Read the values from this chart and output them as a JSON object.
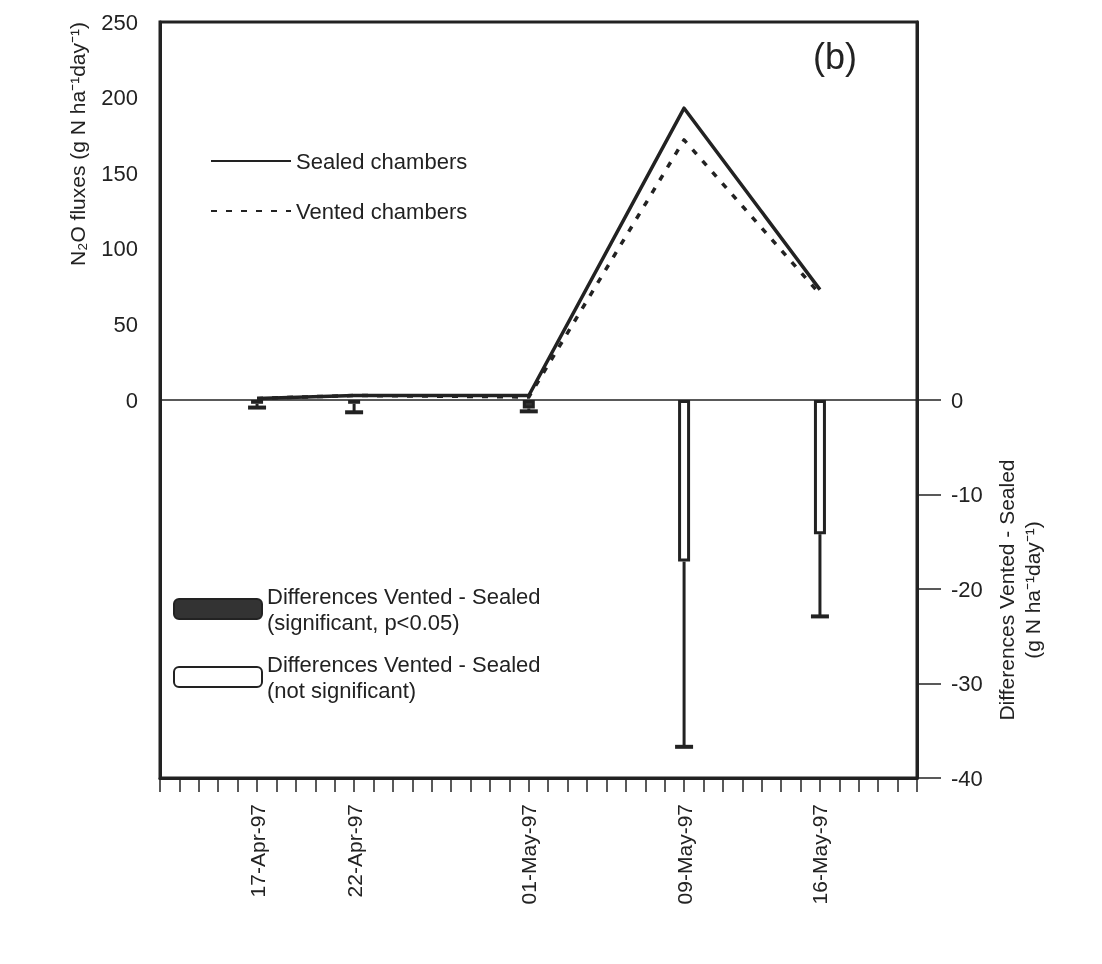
{
  "chart_data": {
    "type": "line",
    "annotations": [
      "(b)"
    ],
    "ylabel": "N₂O fluxes (g N ha⁻¹day⁻¹)",
    "y2label": "Differences Vented - Sealed\n(g N ha⁻¹day⁻¹)",
    "xlim": [
      "1997-04-12",
      "1997-05-21"
    ],
    "xticks": [
      {
        "value": "1997-04-12",
        "label": null
      },
      {
        "value": "1997-04-13",
        "label": null
      },
      {
        "value": "1997-04-14",
        "label": null
      },
      {
        "value": "1997-04-15",
        "label": null
      },
      {
        "value": "1997-04-16",
        "label": null
      },
      {
        "value": "1997-04-17",
        "label": "17-Apr-97"
      },
      {
        "value": "1997-04-18",
        "label": null
      },
      {
        "value": "1997-04-19",
        "label": null
      },
      {
        "value": "1997-04-20",
        "label": null
      },
      {
        "value": "1997-04-21",
        "label": null
      },
      {
        "value": "1997-04-22",
        "label": "22-Apr-97"
      },
      {
        "value": "1997-04-23",
        "label": null
      },
      {
        "value": "1997-04-24",
        "label": null
      },
      {
        "value": "1997-04-25",
        "label": null
      },
      {
        "value": "1997-04-26",
        "label": null
      },
      {
        "value": "1997-04-27",
        "label": null
      },
      {
        "value": "1997-04-28",
        "label": null
      },
      {
        "value": "1997-04-29",
        "label": null
      },
      {
        "value": "1997-04-30",
        "label": null
      },
      {
        "value": "1997-05-01",
        "label": "01-May-97"
      },
      {
        "value": "1997-05-02",
        "label": null
      },
      {
        "value": "1997-05-03",
        "label": null
      },
      {
        "value": "1997-05-04",
        "label": null
      },
      {
        "value": "1997-05-05",
        "label": null
      },
      {
        "value": "1997-05-06",
        "label": null
      },
      {
        "value": "1997-05-07",
        "label": null
      },
      {
        "value": "1997-05-08",
        "label": null
      },
      {
        "value": "1997-05-09",
        "label": "09-May-97"
      },
      {
        "value": "1997-05-10",
        "label": null
      },
      {
        "value": "1997-05-11",
        "label": null
      },
      {
        "value": "1997-05-12",
        "label": null
      },
      {
        "value": "1997-05-13",
        "label": null
      },
      {
        "value": "1997-05-14",
        "label": null
      },
      {
        "value": "1997-05-15",
        "label": null
      },
      {
        "value": "1997-05-16",
        "label": "16-May-97"
      },
      {
        "value": "1997-05-17",
        "label": null
      },
      {
        "value": "1997-05-18",
        "label": null
      },
      {
        "value": "1997-05-19",
        "label": null
      },
      {
        "value": "1997-05-20",
        "label": null
      },
      {
        "value": "1997-05-21",
        "label": null
      }
    ],
    "ylim": [
      -250,
      250
    ],
    "yticks": [
      0,
      50,
      100,
      150,
      200,
      250
    ],
    "y2lim": [
      -40,
      40
    ],
    "y2ticks": [
      -40,
      -30,
      -20,
      -10,
      0
    ],
    "grid": false,
    "legend": "left",
    "marker": "none",
    "ref_lines": [
      {
        "axis": "y",
        "value": 0
      }
    ],
    "series": [
      {
        "name": "Sealed chambers",
        "color": "#222222",
        "line_style": "solid",
        "x": [
          "1997-04-17",
          "1997-04-22",
          "1997-05-01",
          "1997-05-09",
          "1997-05-16"
        ],
        "values": [
          1,
          3,
          3,
          193,
          73
        ]
      },
      {
        "name": "Vented chambers",
        "color": "#222222",
        "line_style": "dashed",
        "x": [
          "1997-04-17",
          "1997-04-22",
          "1997-05-01",
          "1997-05-09",
          "1997-05-16"
        ],
        "values": [
          1,
          3,
          2,
          172,
          70
        ]
      },
      {
        "name": "Differences Vented - Sealed\n(significant, p<0.05)",
        "type": "bar",
        "axis": "y2",
        "color": "#333333",
        "x": [
          "1997-04-17",
          "1997-05-01"
        ],
        "values": [
          -0.4,
          -0.9
        ],
        "errors": [
          [
            -0.8,
            -0.4
          ],
          [
            -1.2,
            -0.9
          ]
        ]
      },
      {
        "name": "Differences Vented - Sealed\n(not significant)",
        "type": "bar",
        "axis": "y2",
        "color": "#ffffff",
        "x": [
          "1997-04-22",
          "1997-05-09",
          "1997-05-16"
        ],
        "values": [
          -0.4,
          -17.1,
          -14.2
        ],
        "errors": [
          [
            -1.3,
            -0.4
          ],
          [
            -36.7,
            -17.1
          ],
          [
            -22.9,
            -14.2
          ]
        ]
      }
    ]
  }
}
